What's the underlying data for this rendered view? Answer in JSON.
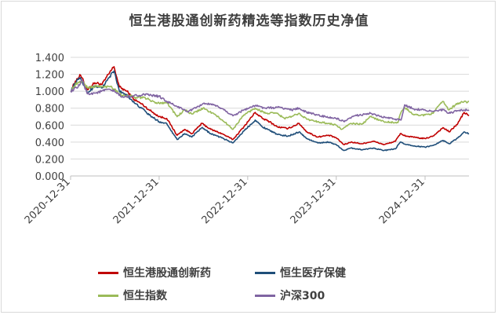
{
  "chart_data": {
    "type": "line",
    "title": "恒生港股通创新药精选等指数历史净值",
    "xlabel": "",
    "ylabel": "",
    "y_ticks": [
      "0.000",
      "0.200",
      "0.400",
      "0.600",
      "0.800",
      "1.000",
      "1.200",
      "1.400"
    ],
    "ylim": [
      0,
      1.4
    ],
    "x_ticks": [
      "2020-12-31",
      "2021-12-31",
      "2022-12-31",
      "2023-12-31",
      "2024-12-31"
    ],
    "xlim": [
      "2020-12-31",
      "2025-06-30"
    ],
    "grid": "horizontal",
    "legend_position": "bottom",
    "series": [
      {
        "name": "恒生港股通创新药",
        "color": "#c00000",
        "points": [
          [
            "2020-12-31",
            1.0
          ],
          [
            "2021-01-20",
            1.12
          ],
          [
            "2021-02-10",
            1.19
          ],
          [
            "2021-03-10",
            1.02
          ],
          [
            "2021-04-10",
            1.1
          ],
          [
            "2021-05-10",
            1.08
          ],
          [
            "2021-06-10",
            1.22
          ],
          [
            "2021-06-28",
            1.29
          ],
          [
            "2021-07-20",
            1.05
          ],
          [
            "2021-08-20",
            1.0
          ],
          [
            "2021-09-20",
            0.9
          ],
          [
            "2021-10-20",
            0.85
          ],
          [
            "2021-11-20",
            0.78
          ],
          [
            "2021-12-31",
            0.7
          ],
          [
            "2022-01-31",
            0.68
          ],
          [
            "2022-03-15",
            0.48
          ],
          [
            "2022-04-15",
            0.55
          ],
          [
            "2022-05-15",
            0.5
          ],
          [
            "2022-06-25",
            0.62
          ],
          [
            "2022-08-01",
            0.55
          ],
          [
            "2022-09-15",
            0.5
          ],
          [
            "2022-10-31",
            0.43
          ],
          [
            "2022-12-15",
            0.58
          ],
          [
            "2023-01-31",
            0.75
          ],
          [
            "2023-03-01",
            0.68
          ],
          [
            "2023-04-01",
            0.64
          ],
          [
            "2023-05-01",
            0.58
          ],
          [
            "2023-06-15",
            0.56
          ],
          [
            "2023-07-31",
            0.62
          ],
          [
            "2023-09-01",
            0.52
          ],
          [
            "2023-10-15",
            0.46
          ],
          [
            "2023-11-30",
            0.48
          ],
          [
            "2023-12-31",
            0.45
          ],
          [
            "2024-01-31",
            0.37
          ],
          [
            "2024-03-01",
            0.4
          ],
          [
            "2024-04-15",
            0.38
          ],
          [
            "2024-06-01",
            0.41
          ],
          [
            "2024-07-15",
            0.37
          ],
          [
            "2024-08-31",
            0.41
          ],
          [
            "2024-09-20",
            0.5
          ],
          [
            "2024-10-15",
            0.47
          ],
          [
            "2024-11-30",
            0.45
          ],
          [
            "2024-12-31",
            0.44
          ],
          [
            "2025-02-01",
            0.47
          ],
          [
            "2025-03-15",
            0.57
          ],
          [
            "2025-04-10",
            0.52
          ],
          [
            "2025-05-15",
            0.62
          ],
          [
            "2025-06-10",
            0.75
          ],
          [
            "2025-06-30",
            0.71
          ]
        ]
      },
      {
        "name": "恒生医疗保健",
        "color": "#1f4e79",
        "points": [
          [
            "2020-12-31",
            1.0
          ],
          [
            "2021-01-20",
            1.1
          ],
          [
            "2021-02-10",
            1.16
          ],
          [
            "2021-03-10",
            0.98
          ],
          [
            "2021-04-10",
            1.06
          ],
          [
            "2021-05-10",
            1.04
          ],
          [
            "2021-06-10",
            1.17
          ],
          [
            "2021-06-28",
            1.24
          ],
          [
            "2021-07-20",
            1.0
          ],
          [
            "2021-08-20",
            0.96
          ],
          [
            "2021-09-20",
            0.86
          ],
          [
            "2021-10-20",
            0.8
          ],
          [
            "2021-11-20",
            0.72
          ],
          [
            "2021-12-31",
            0.64
          ],
          [
            "2022-01-31",
            0.62
          ],
          [
            "2022-03-15",
            0.43
          ],
          [
            "2022-04-15",
            0.5
          ],
          [
            "2022-05-15",
            0.46
          ],
          [
            "2022-06-25",
            0.57
          ],
          [
            "2022-08-01",
            0.5
          ],
          [
            "2022-09-15",
            0.45
          ],
          [
            "2022-10-31",
            0.39
          ],
          [
            "2022-12-15",
            0.53
          ],
          [
            "2023-01-31",
            0.66
          ],
          [
            "2023-03-01",
            0.58
          ],
          [
            "2023-04-01",
            0.54
          ],
          [
            "2023-05-01",
            0.49
          ],
          [
            "2023-06-15",
            0.47
          ],
          [
            "2023-07-31",
            0.52
          ],
          [
            "2023-09-01",
            0.44
          ],
          [
            "2023-10-15",
            0.39
          ],
          [
            "2023-11-30",
            0.4
          ],
          [
            "2023-12-31",
            0.37
          ],
          [
            "2024-01-31",
            0.3
          ],
          [
            "2024-03-01",
            0.33
          ],
          [
            "2024-04-15",
            0.31
          ],
          [
            "2024-06-01",
            0.33
          ],
          [
            "2024-07-15",
            0.3
          ],
          [
            "2024-08-31",
            0.32
          ],
          [
            "2024-09-20",
            0.4
          ],
          [
            "2024-10-15",
            0.37
          ],
          [
            "2024-11-30",
            0.35
          ],
          [
            "2024-12-31",
            0.34
          ],
          [
            "2025-02-01",
            0.36
          ],
          [
            "2025-03-15",
            0.42
          ],
          [
            "2025-04-10",
            0.38
          ],
          [
            "2025-05-15",
            0.45
          ],
          [
            "2025-06-10",
            0.52
          ],
          [
            "2025-06-30",
            0.5
          ]
        ]
      },
      {
        "name": "恒生指数",
        "color": "#9bbb59",
        "points": [
          [
            "2020-12-31",
            1.0
          ],
          [
            "2021-01-20",
            1.08
          ],
          [
            "2021-02-18",
            1.12
          ],
          [
            "2021-03-10",
            1.04
          ],
          [
            "2021-04-15",
            1.06
          ],
          [
            "2021-05-15",
            1.05
          ],
          [
            "2021-06-15",
            1.06
          ],
          [
            "2021-07-31",
            0.95
          ],
          [
            "2021-08-31",
            0.95
          ],
          [
            "2021-09-30",
            0.92
          ],
          [
            "2021-10-31",
            0.93
          ],
          [
            "2021-11-30",
            0.88
          ],
          [
            "2021-12-31",
            0.86
          ],
          [
            "2022-01-31",
            0.87
          ],
          [
            "2022-03-15",
            0.7
          ],
          [
            "2022-04-15",
            0.78
          ],
          [
            "2022-05-15",
            0.73
          ],
          [
            "2022-06-30",
            0.8
          ],
          [
            "2022-08-15",
            0.73
          ],
          [
            "2022-09-30",
            0.63
          ],
          [
            "2022-10-31",
            0.55
          ],
          [
            "2022-12-15",
            0.72
          ],
          [
            "2023-01-31",
            0.8
          ],
          [
            "2023-03-15",
            0.74
          ],
          [
            "2023-04-30",
            0.74
          ],
          [
            "2023-05-31",
            0.68
          ],
          [
            "2023-06-30",
            0.7
          ],
          [
            "2023-07-31",
            0.74
          ],
          [
            "2023-08-31",
            0.67
          ],
          [
            "2023-10-15",
            0.64
          ],
          [
            "2023-11-30",
            0.62
          ],
          [
            "2023-12-31",
            0.6
          ],
          [
            "2024-01-22",
            0.55
          ],
          [
            "2024-03-01",
            0.62
          ],
          [
            "2024-04-15",
            0.61
          ],
          [
            "2024-05-20",
            0.7
          ],
          [
            "2024-07-15",
            0.64
          ],
          [
            "2024-09-10",
            0.63
          ],
          [
            "2024-09-20",
            0.73
          ],
          [
            "2024-10-07",
            0.81
          ],
          [
            "2024-11-15",
            0.72
          ],
          [
            "2024-12-31",
            0.72
          ],
          [
            "2025-01-31",
            0.74
          ],
          [
            "2025-03-15",
            0.88
          ],
          [
            "2025-04-08",
            0.78
          ],
          [
            "2025-05-15",
            0.86
          ],
          [
            "2025-06-30",
            0.88
          ]
        ]
      },
      {
        "name": "沪深300",
        "color": "#8064a2",
        "points": [
          [
            "2020-12-31",
            1.0
          ],
          [
            "2021-01-31",
            1.05
          ],
          [
            "2021-02-18",
            1.13
          ],
          [
            "2021-03-10",
            0.97
          ],
          [
            "2021-04-15",
            0.98
          ],
          [
            "2021-05-31",
            1.02
          ],
          [
            "2021-06-30",
            1.0
          ],
          [
            "2021-07-31",
            0.93
          ],
          [
            "2021-08-31",
            0.94
          ],
          [
            "2021-09-30",
            0.95
          ],
          [
            "2021-10-31",
            0.96
          ],
          [
            "2021-11-30",
            0.95
          ],
          [
            "2021-12-31",
            0.94
          ],
          [
            "2022-01-31",
            0.88
          ],
          [
            "2022-03-15",
            0.82
          ],
          [
            "2022-04-26",
            0.76
          ],
          [
            "2022-05-31",
            0.8
          ],
          [
            "2022-07-04",
            0.86
          ],
          [
            "2022-08-31",
            0.82
          ],
          [
            "2022-09-30",
            0.77
          ],
          [
            "2022-10-31",
            0.71
          ],
          [
            "2022-12-15",
            0.78
          ],
          [
            "2023-01-31",
            0.83
          ],
          [
            "2023-03-15",
            0.8
          ],
          [
            "2023-05-09",
            0.81
          ],
          [
            "2023-06-30",
            0.78
          ],
          [
            "2023-07-31",
            0.8
          ],
          [
            "2023-08-31",
            0.75
          ],
          [
            "2023-10-15",
            0.72
          ],
          [
            "2023-11-30",
            0.69
          ],
          [
            "2023-12-31",
            0.68
          ],
          [
            "2024-02-02",
            0.64
          ],
          [
            "2024-03-15",
            0.71
          ],
          [
            "2024-05-20",
            0.74
          ],
          [
            "2024-06-30",
            0.7
          ],
          [
            "2024-08-31",
            0.67
          ],
          [
            "2024-09-23",
            0.66
          ],
          [
            "2024-10-08",
            0.84
          ],
          [
            "2024-11-15",
            0.79
          ],
          [
            "2024-12-31",
            0.78
          ],
          [
            "2025-01-31",
            0.76
          ],
          [
            "2025-03-15",
            0.78
          ],
          [
            "2025-04-08",
            0.74
          ],
          [
            "2025-05-15",
            0.77
          ],
          [
            "2025-06-30",
            0.78
          ]
        ]
      }
    ]
  }
}
